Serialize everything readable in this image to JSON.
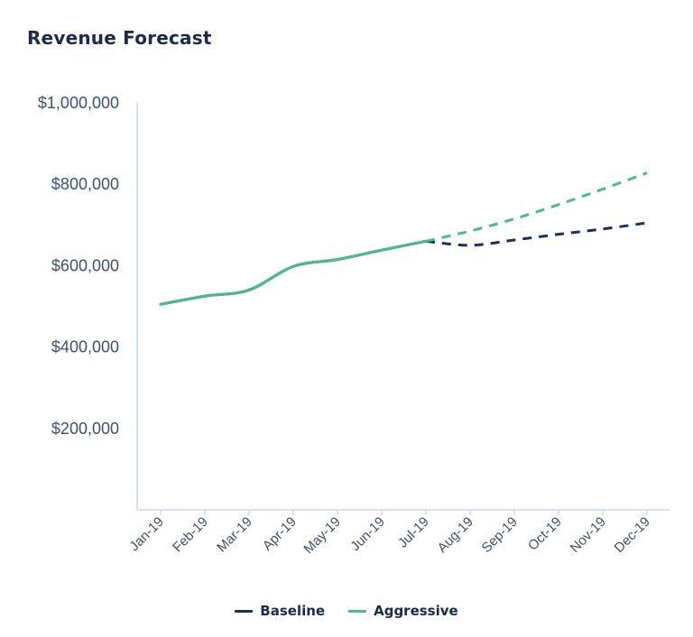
{
  "chart_data": {
    "type": "line",
    "title": "Revenue Forecast",
    "xlabel": "",
    "ylabel": "",
    "x": [
      "Jan-19",
      "Feb-19",
      "Mar-19",
      "Apr-19",
      "May-19",
      "Jun-19",
      "Jul-19",
      "Aug-19",
      "Sep-19",
      "Oct-19",
      "Nov-19",
      "Dec-19"
    ],
    "ylim": [
      0,
      1000000
    ],
    "yticks": [
      200000,
      400000,
      600000,
      800000,
      1000000
    ],
    "ytick_labels": [
      "$200,000",
      "$400,000",
      "$600,000",
      "$800,000",
      "$1,000,000"
    ],
    "grid": false,
    "legend_position": "bottom-center",
    "series": [
      {
        "name": "Baseline",
        "color": "#1b2f63",
        "values": [
          505000,
          525000,
          540000,
          598000,
          615000,
          638000,
          660000,
          650000,
          663000,
          677000,
          690000,
          705000
        ],
        "forecast_from_index": 6
      },
      {
        "name": "Aggressive",
        "color": "#4cba88",
        "values": [
          505000,
          525000,
          540000,
          598000,
          615000,
          638000,
          660000,
          685000,
          715000,
          750000,
          788000,
          828000
        ],
        "forecast_from_index": 6
      }
    ]
  },
  "legend": {
    "baseline_label": "Baseline",
    "aggressive_label": "Aggressive"
  }
}
